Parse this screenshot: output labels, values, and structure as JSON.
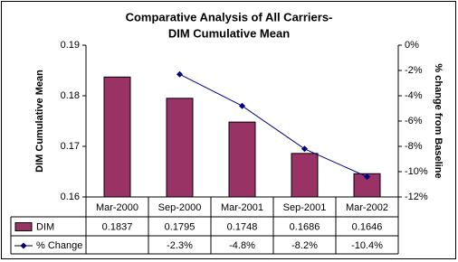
{
  "chart_data": {
    "type": "bar-line",
    "title": [
      "Comparative Analysis of All Carriers-",
      "DIM Cumulative Mean"
    ],
    "y_label": "DIM Cumulative Mean",
    "y2_label": "% change from Baseline",
    "categories": [
      "Mar-2000",
      "Sep-2000",
      "Mar-2001",
      "Sep-2001",
      "Mar-2002"
    ],
    "series": [
      {
        "name": "DIM",
        "type": "bar",
        "color": "#993366",
        "values": [
          0.1837,
          0.1795,
          0.1748,
          0.1686,
          0.1646
        ]
      },
      {
        "name": "% Change",
        "type": "line",
        "axis": "y2",
        "color": "#000080",
        "values": [
          null,
          -2.3,
          -4.8,
          -8.2,
          -10.4
        ],
        "value_labels": [
          null,
          "-2.3%",
          "-4.8%",
          "-8.2%",
          "-10.4%"
        ]
      }
    ],
    "ylim": [
      0.16,
      0.19
    ],
    "yticks": [
      0.16,
      0.17,
      0.18,
      0.19
    ],
    "y2lim": [
      -12,
      0
    ],
    "y2ticks": [
      {
        "value": 0,
        "label": "0%"
      },
      {
        "value": -2,
        "label": "-2%"
      },
      {
        "value": -4,
        "label": "-4%"
      },
      {
        "value": -6,
        "label": "-6%"
      },
      {
        "value": -8,
        "label": "-8%"
      },
      {
        "value": -10,
        "label": "-10%"
      },
      {
        "value": -12,
        "label": "-12%"
      }
    ],
    "grid": false,
    "data_table": true
  }
}
